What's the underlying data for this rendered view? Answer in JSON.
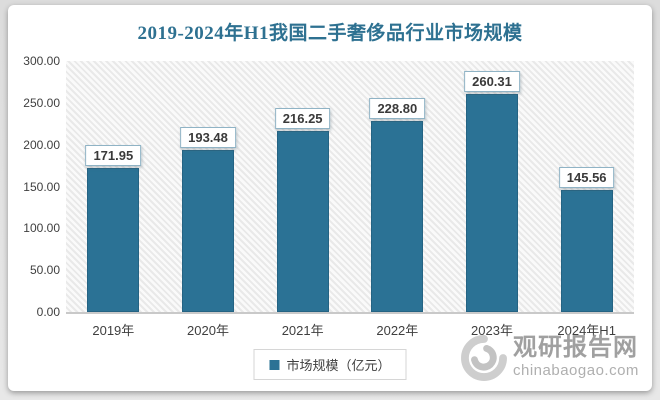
{
  "title": "2019-2024年H1我国二手奢侈品行业市场规模",
  "chart_data": {
    "type": "bar",
    "title": "2019-2024年H1我国二手奢侈品行业市场规模",
    "categories": [
      "2019年",
      "2020年",
      "2021年",
      "2022年",
      "2023年",
      "2024年H1"
    ],
    "values": [
      171.95,
      193.48,
      216.25,
      228.8,
      260.31,
      145.56
    ],
    "series_name": "市场规模（亿元）",
    "unit": "亿元",
    "ylim": [
      0,
      300
    ],
    "ytick_step": 50,
    "ytick_decimals": 2,
    "value_label_decimals": 2,
    "grid": false,
    "legend_position": "bottom",
    "plot_background": "diagonal-hatch"
  },
  "legend": {
    "label": "市场规模（亿元）"
  },
  "watermark": {
    "site_name": "观研报告网",
    "site_url": "chinabaogao.com"
  },
  "colors": {
    "bar": "#2B7295",
    "title_text": "#2E7191",
    "axis_text": "#3F3F3F",
    "watermark_text": "#A0A0A0"
  }
}
